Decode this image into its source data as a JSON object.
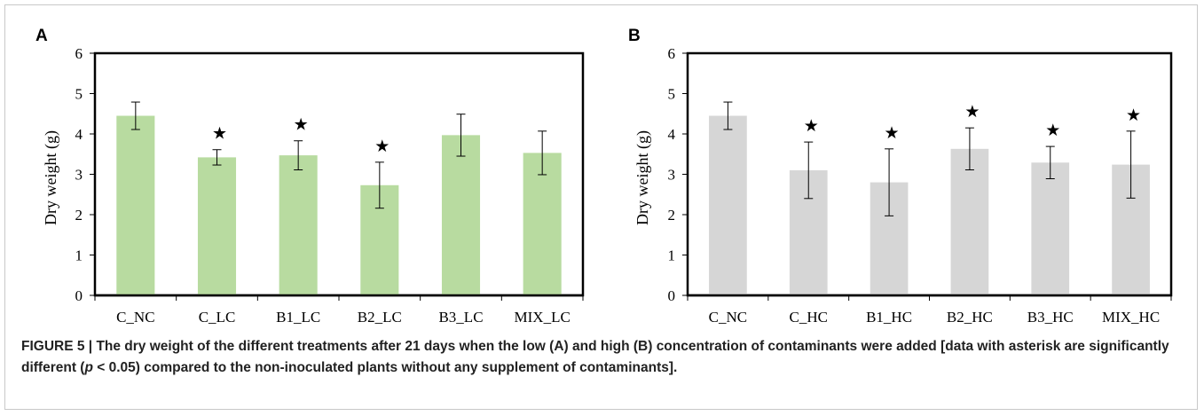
{
  "colors": {
    "panel_a_bar": "#b8dba0",
    "panel_b_bar": "#d6d6d6",
    "frame": "#000000"
  },
  "chart_data": [
    {
      "type": "bar",
      "panel_label": "A",
      "title": "",
      "xlabel": "",
      "ylabel": "Dry weight (g)",
      "ylim": [
        0,
        6
      ],
      "yticks": [
        "0",
        "1",
        "2",
        "3",
        "4",
        "5",
        "6"
      ],
      "grid": false,
      "legend": "none",
      "categories": [
        "C_NC",
        "C_LC",
        "B1_LC",
        "B2_LC",
        "B3_LC",
        "MIX_LC"
      ],
      "values": [
        4.45,
        3.42,
        3.47,
        2.73,
        3.97,
        3.53
      ],
      "error": [
        0.34,
        0.19,
        0.36,
        0.57,
        0.52,
        0.54
      ],
      "significant": [
        false,
        true,
        true,
        true,
        false,
        false
      ],
      "marker": "★",
      "color": "#b8dba0"
    },
    {
      "type": "bar",
      "panel_label": "B",
      "title": "",
      "xlabel": "",
      "ylabel": "Dry weight (g)",
      "ylim": [
        0,
        6
      ],
      "yticks": [
        "0",
        "1",
        "2",
        "3",
        "4",
        "5",
        "6"
      ],
      "grid": false,
      "legend": "none",
      "categories": [
        "C_NC",
        "C_HC",
        "B1_HC",
        "B2_HC",
        "B3_HC",
        "MIX_HC"
      ],
      "values": [
        4.45,
        3.1,
        2.8,
        3.63,
        3.29,
        3.24
      ],
      "error": [
        0.34,
        0.7,
        0.83,
        0.52,
        0.4,
        0.83
      ],
      "significant": [
        false,
        true,
        true,
        true,
        true,
        true
      ],
      "marker": "★",
      "color": "#d6d6d6"
    }
  ],
  "caption": {
    "label": "FIGURE 5 | ",
    "text_before_p": "The dry weight of the different treatments after 21 days when the low (A) and high (B) concentration of contaminants were added [data with asterisk are significantly different (",
    "p_symbol": "p",
    "text_after_p": " < 0.05) compared to the non-inoculated plants without any supplement of contaminants]."
  }
}
